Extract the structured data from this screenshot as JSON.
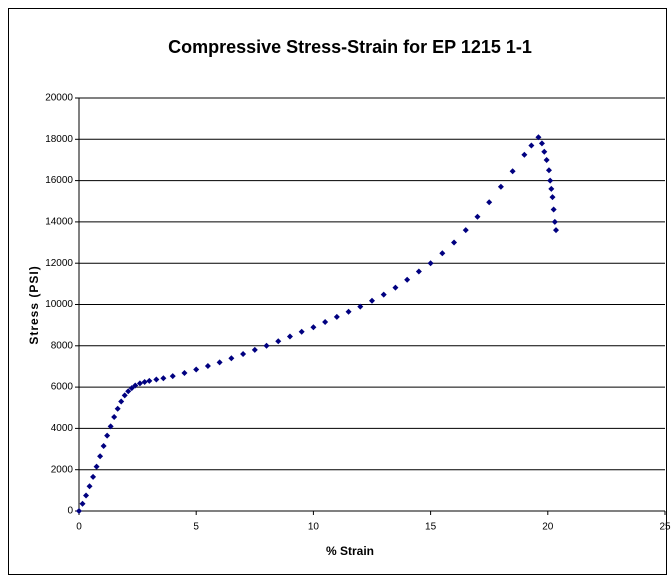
{
  "chart_data": {
    "type": "scatter",
    "title": "Compressive Stress-Strain for EP 1215 1-1",
    "x_label": "% Strain",
    "y_label": "Stress (PSI)",
    "color": "#000080",
    "grid": true,
    "xlim": [
      0,
      25
    ],
    "xticks": [
      0,
      5,
      10,
      15,
      20,
      25
    ],
    "ylim": [
      0,
      20000
    ],
    "yticks": [
      0,
      2000,
      4000,
      6000,
      8000,
      10000,
      12000,
      14000,
      16000,
      18000,
      20000
    ],
    "x": [
      0,
      0.15,
      0.3,
      0.45,
      0.6,
      0.75,
      0.9,
      1.05,
      1.2,
      1.35,
      1.5,
      1.65,
      1.8,
      1.95,
      2.1,
      2.25,
      2.4,
      2.6,
      2.8,
      3,
      3.3,
      3.6,
      4,
      4.5,
      5,
      5.5,
      6,
      6.5,
      7,
      7.5,
      8,
      8.5,
      9,
      9.5,
      10,
      10.5,
      11,
      11.5,
      12,
      12.5,
      13,
      13.5,
      14,
      14.5,
      15,
      15.5,
      16,
      16.5,
      17,
      17.5,
      18,
      18.5,
      19,
      19.3,
      19.6,
      19.75,
      19.85,
      19.95,
      20.05,
      20.1,
      20.15,
      20.2,
      20.25,
      20.3,
      20.35
    ],
    "values": [
      0,
      350,
      750,
      1200,
      1650,
      2150,
      2650,
      3150,
      3650,
      4100,
      4550,
      4950,
      5300,
      5600,
      5800,
      5950,
      6080,
      6180,
      6250,
      6300,
      6370,
      6430,
      6530,
      6680,
      6850,
      7020,
      7200,
      7400,
      7600,
      7800,
      8000,
      8220,
      8450,
      8680,
      8900,
      9150,
      9400,
      9650,
      9900,
      10180,
      10480,
      10820,
      11200,
      11600,
      12000,
      12480,
      13000,
      13600,
      14250,
      14950,
      15700,
      16450,
      17250,
      17700,
      18100,
      17800,
      17400,
      17000,
      16500,
      16000,
      15600,
      15200,
      14600,
      14000,
      13600
    ]
  }
}
